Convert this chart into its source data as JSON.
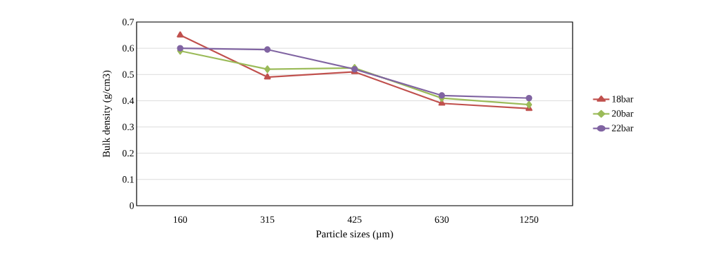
{
  "chart_data": {
    "type": "line",
    "xlabel": "Particle sizes (µm)",
    "ylabel": "Bulk density (g/cm3)",
    "categories": [
      "160",
      "315",
      "425",
      "630",
      "1250"
    ],
    "series": [
      {
        "name": "18bar",
        "color": "#c0504d",
        "marker": "triangle",
        "values": [
          0.65,
          0.49,
          0.51,
          0.39,
          0.37
        ]
      },
      {
        "name": "20bar",
        "color": "#9bbb59",
        "marker": "diamond",
        "values": [
          0.59,
          0.52,
          0.525,
          0.41,
          0.385
        ]
      },
      {
        "name": "22bar",
        "color": "#8064a2",
        "marker": "circle",
        "values": [
          0.6,
          0.595,
          0.52,
          0.42,
          0.41
        ]
      }
    ],
    "ylim": [
      0,
      0.7
    ],
    "yticks": [
      0,
      0.1,
      0.2,
      0.3,
      0.4,
      0.5,
      0.6,
      0.7
    ],
    "grid": "y",
    "legend": "right",
    "line_style": "solid"
  }
}
